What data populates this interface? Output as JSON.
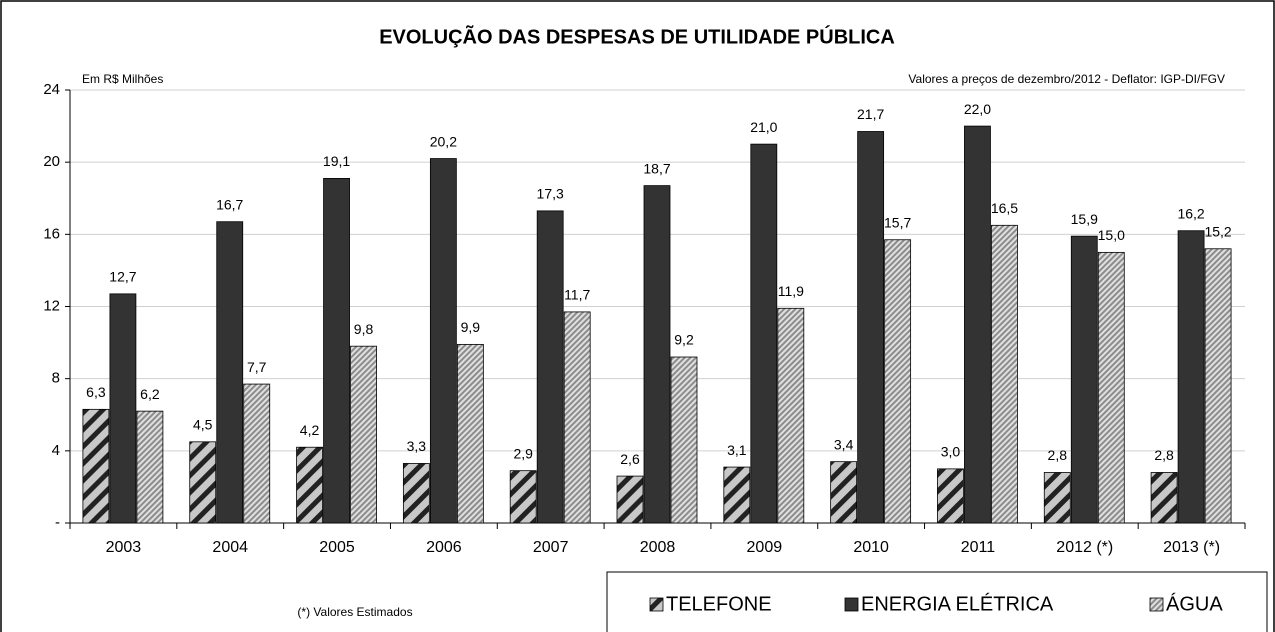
{
  "chart_data": {
    "type": "bar",
    "title": "EVOLUÇÃO DAS DESPESAS DE UTILIDADE PÚBLICA",
    "subtitle_left": "Em R$ Milhões",
    "subtitle_right": "Valores a preços de dezembro/2012 - Deflator: IGP-DI/FGV",
    "footnote": "(*) Valores Estimados",
    "categories": [
      "2003",
      "2004",
      "2005",
      "2006",
      "2007",
      "2008",
      "2009",
      "2010",
      "2011",
      "2012 (*)",
      "2013 (*)"
    ],
    "series": [
      {
        "name": "TELEFONE",
        "color": "#222222",
        "pattern": "wide-hatch",
        "values": [
          6.3,
          4.5,
          4.2,
          3.3,
          2.9,
          2.6,
          3.1,
          3.4,
          3.0,
          2.8,
          2.8
        ],
        "value_labels": [
          "6,3",
          "4,5",
          "4,2",
          "3,3",
          "2,9",
          "2,6",
          "3,1",
          "3,4",
          "3,0",
          "2,8",
          "2,8"
        ]
      },
      {
        "name": "ENERGIA ELÉTRICA",
        "color": "#333333",
        "pattern": "solid",
        "values": [
          12.7,
          16.7,
          19.1,
          20.2,
          17.3,
          18.7,
          21.0,
          21.7,
          22.0,
          15.9,
          16.2
        ],
        "value_labels": [
          "12,7",
          "16,7",
          "19,1",
          "20,2",
          "17,3",
          "18,7",
          "21,0",
          "21,7",
          "22,0",
          "15,9",
          "16,2"
        ]
      },
      {
        "name": "ÁGUA",
        "color": "#8c8c8c",
        "pattern": "fine-hatch",
        "values": [
          6.2,
          7.7,
          9.8,
          9.9,
          11.7,
          9.2,
          11.9,
          15.7,
          16.5,
          15.0,
          15.2
        ],
        "value_labels": [
          "6,2",
          "7,7",
          "9,8",
          "9,9",
          "11,7",
          "9,2",
          "11,9",
          "15,7",
          "16,5",
          "15,0",
          "15,2"
        ]
      }
    ],
    "ylim": [
      0,
      24
    ],
    "yticks": [
      {
        "value": 0,
        "label": "-"
      },
      4,
      8,
      12,
      16,
      20,
      24
    ],
    "grid": true,
    "legend": "bottom-right"
  }
}
